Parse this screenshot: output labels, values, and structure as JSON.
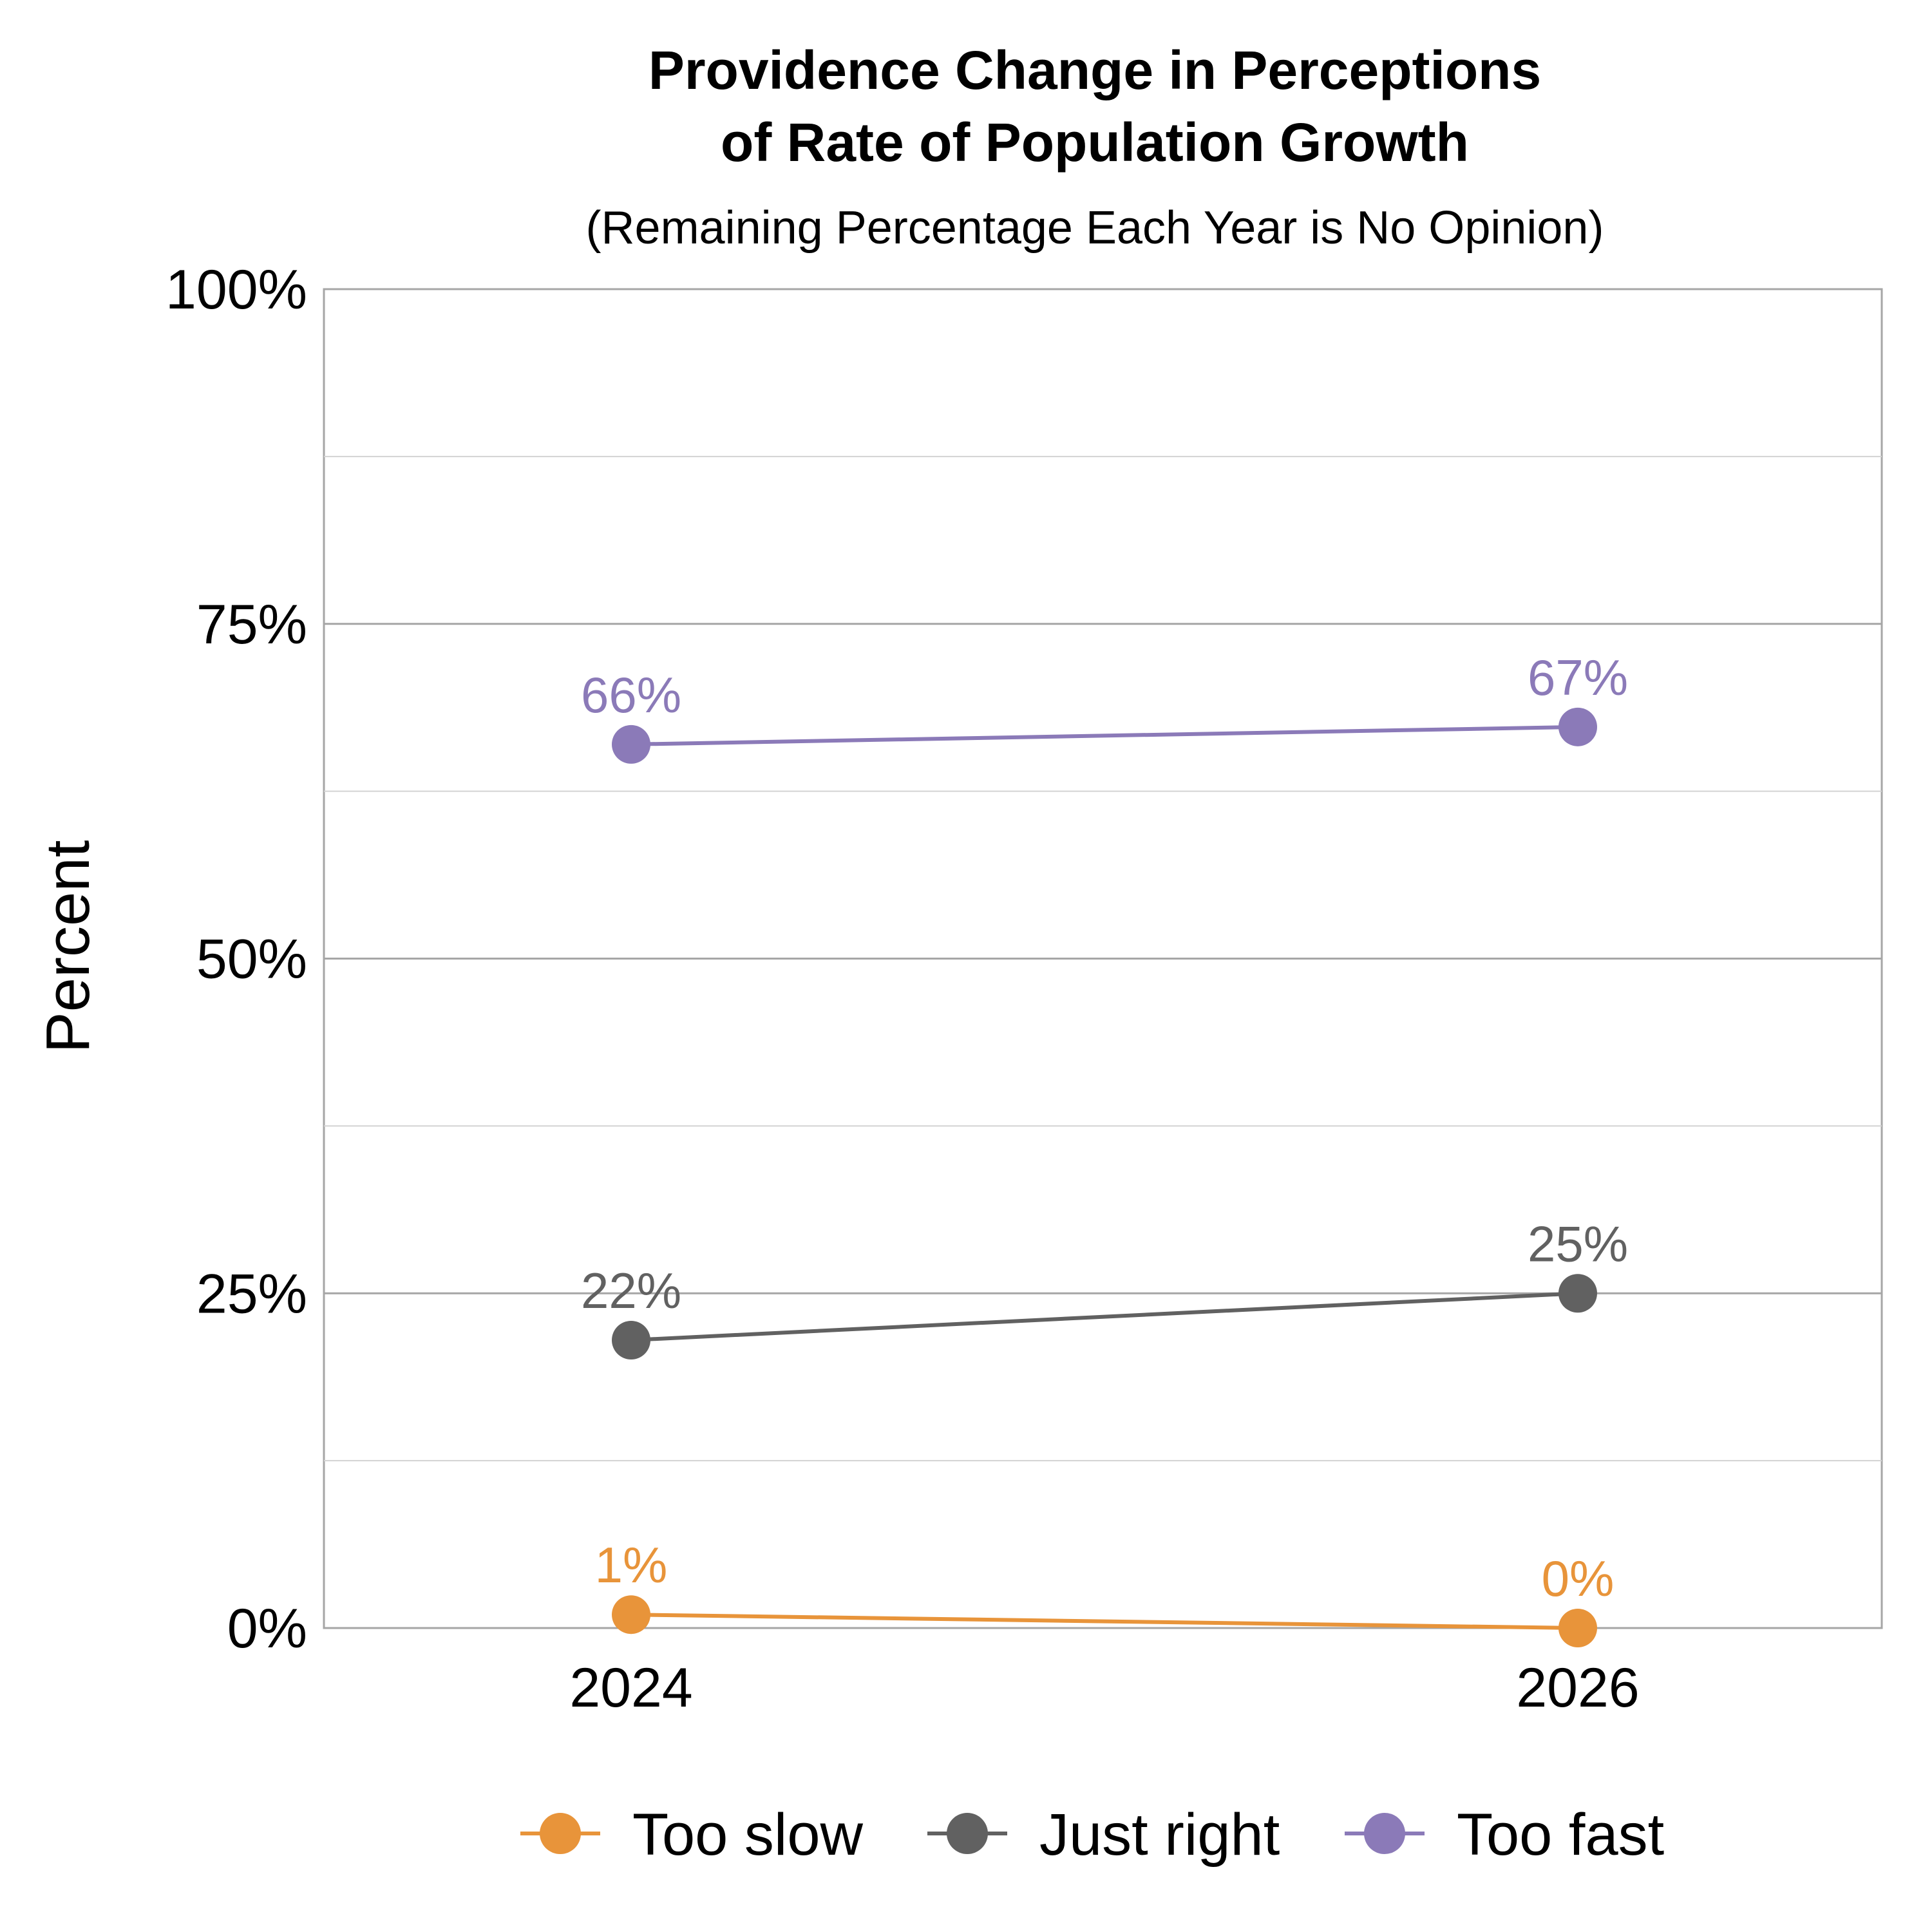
{
  "chart_data": {
    "type": "line",
    "title": [
      "Providence Change in Perceptions",
      "of Rate of Population Growth"
    ],
    "subtitle": "(Remaining Percentage Each Year is No Opinion)",
    "xlabel": "",
    "ylabel": "Percent",
    "categories": [
      "2024",
      "2026"
    ],
    "y_ticks": [
      {
        "value": 0,
        "label": "0%"
      },
      {
        "value": 25,
        "label": "25%"
      },
      {
        "value": 50,
        "label": "50%"
      },
      {
        "value": 75,
        "label": "75%"
      },
      {
        "value": 100,
        "label": "100%"
      }
    ],
    "y_minor_ticks": [
      12.5,
      37.5,
      62.5,
      87.5
    ],
    "ylim": [
      0,
      100
    ],
    "grid": true,
    "legend_position": "bottom",
    "series": [
      {
        "name": "Too slow",
        "color": "#E8943A",
        "values": [
          1,
          0
        ],
        "labels": [
          "1%",
          "0%"
        ]
      },
      {
        "name": "Just right",
        "color": "#616161",
        "values": [
          21.5,
          25
        ],
        "labels": [
          "22%",
          "25%"
        ]
      },
      {
        "name": "Too fast",
        "color": "#8B7AB8",
        "values": [
          66,
          67.3
        ],
        "labels": [
          "66%",
          "67%"
        ]
      }
    ]
  }
}
